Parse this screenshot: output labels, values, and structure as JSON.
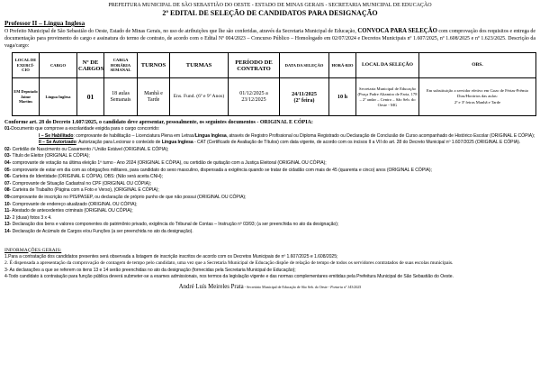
{
  "header": {
    "org": "PREFEITURA MUNICIPAL DE SÃO SEBASTIÃO DO OESTE - ESTADO DE MINAS GERAIS - SECRETARIA MUNICIPAL DE EDUCAÇÃO",
    "title": "2º EDITAL DE SELEÇÃO DE CANDIDATOS PARA DESIGNAÇÃO",
    "role": "Professor II – Língua Inglesa"
  },
  "intro": {
    "p1": "O Prefeito Municipal de São Sebastião do Oeste, Estado de Minas Gerais, no uso de atribuições que lhe são conferidas, através da Secretaria Municipal de Educação, ",
    "bold": "CONVOCA PARA SELEÇÃO",
    "p2": " com comprovação dos requisitos e entrega de documentação para provimento do cargo e assinatura do termo de contrato, de acordo com o Edital Nº 004/2023 – Concurso Público – Homologado em 02/07/2024 e Decretos Municipais nº 1.607/2025, nº 1.608/2025 e nº 1.623/2025. Descrição da vaga/cargo:"
  },
  "table": {
    "headers": [
      "LOCAL DE EXERCÍ-CIO",
      "CARGO",
      "Nº DE CARGOS",
      "CARGA HORÁRIA SEMANAL",
      "TURNOS",
      "TURMAS",
      "PERÍODO DE CONTRATO",
      "DATA DA SELEÇÃO",
      "HORÁ-RIO",
      "LOCAL DA SELEÇÃO",
      "OBS."
    ],
    "row": {
      "local": "EM Deputado Jaime Martins",
      "cargo": "Língua Inglesa",
      "num": "01",
      "carga": "18 aulas Semanais",
      "turnos": "Manhã e Tarde",
      "turmas": "Ens. Fund. (6º e 9º Anos)",
      "periodo": "01/12/2025 a 23/12/2025",
      "data": "24/11/2025",
      "data_dia": "(2ª feira)",
      "horario": "10 h",
      "local_selecao": "Secretaria Municipal de Educação (Praça Padre Altamiro de Faria, 178 – 2º andar – Centro – São Seb. do Oeste - MG",
      "obs1": "Em substituição a servidor efetivo em Gozo de Férias-Prêmio",
      "obs2": "Dias/Horários das aulas:",
      "obs3": "2ª e 3ª feiras Manhã e Tarde"
    }
  },
  "docs": {
    "conforme": "Conforme art. 28 do Decreto 1.607/2025, o candidato deve apresentar, pessoalmente, os seguintes documentos - ORIGINAL E CÓPIA:",
    "items": [
      {
        "n": "01-",
        "t": "Documento que comprove a escolaridade exigida para o cargo concorrido:"
      },
      {
        "n": "02-",
        "t": " Certidão de Nascimento ou Casamento / União Estável (ORIGINAL E CÓPIA);"
      },
      {
        "n": "03-",
        "t": " Título de Eleitor (ORIGINAL E CÓPIA);"
      },
      {
        "n": "04-",
        "t": " comprovante de votação na última eleição 1º turno - Ano 2024 (ORIGINAL E CÓPIA), ou certidão de quitação com a Justiça Eleitoral (ORIGINAL OU CÓPIA);"
      },
      {
        "n": "05-",
        "t": " comprovante de estar em dia com as obrigações militares, para candidato do sexo masculino, dispensada a exigência quando se tratar de cidadão com mais de 45 (quarenta e cinco) anos (ORIGINAL E CÓPIA);"
      },
      {
        "n": "06-",
        "t": " Carteira de Identidade (ORIGINAL E CÓPIA). OBS: (Não será aceita CNH);"
      },
      {
        "n": "07-",
        "t": " Comprovante de Situação Cadastral no CPF (ORIGINAL OU CÓPIA);"
      },
      {
        "n": "08-",
        "t": " Carteira de Trabalho (Página com a Foto e Verso), (ORIGINAL E CÓPIA);"
      },
      {
        "n": "09-",
        "t": "comprovante de inscrição no PIS/PASEP, ou declaração de próprio punho de que não possui (ORIGINAL OU CÓPIA);"
      },
      {
        "n": "10-",
        "t": " Comprovante de endereço atualizado (ORIGINAL OU CÓPIA);"
      },
      {
        "n": "11-",
        "t": " Atestado de antecedentes criminais (ORIGINAL OU CÓPIA);"
      },
      {
        "n": "12-",
        "t": " 2 (duas) fotos 3 x 4."
      },
      {
        "n": "13-",
        "t": " Declaração dos bens e valores componentes do patrimônio privado, exigência do Tribunal de Contas – Instrução nº 03/93; (a ser preenchida no ato da designação);"
      },
      {
        "n": "14-",
        "t": " Declaração de Acúmulo de Cargos e/ou Funções (a ser preenchida no ato da designação)."
      }
    ],
    "hab_label": "I – Se Habilitado",
    "hab_1": ": comprovante de habilitação – Licenciatura Plena em Letras/",
    "hab_bold": "Língua Inglesa",
    "hab_2": ", através de Registro Profissional ou Diploma Registrado ou Declaração de Conclusão de Curso acompanhado de Histórico Escolar (ORIGINAL E CÓPIA);",
    "aut_label": "II – Se Autorizado",
    "aut_1": ": Autorização para Lecionar o conteúdo de ",
    "aut_bold": "Língua Inglesa",
    "aut_2": " - CAT (Certificado de Avaliação de Títulos) com data vigente, de acordo com os incisos II a VII do art. 28 do Decreto Municipal nº 1.607/2025 (ORIGINAL E CÓPIA)."
  },
  "info": {
    "heading": "INFORMAÇÕES GERAIS:",
    "items": [
      "1.Para a contratação dos candidatos presentes será observada a listagem de inscrição inscritos de acordo com os Decretos Municipais de nº 1.607/2025 e 1.608/2025;",
      "2. É dispensada a apresentação da comprovação de contagem de tempo pelo candidato, uma vez que a Secretaria Municipal de Educação dispõe de relação de tempo de todos os servidores contratados de suas escolas municipais.",
      "3- As declarações a que se referem os itens 13 e 14 serão preenchidas no ato da designação (fornecidas pela Secretaria Municipal de Educação);",
      "4-Todo candidato à contratação para função pública deverá submeter-se a exames admissionais, nos termos da legislação vigente e das normas complementares emitidas pela Prefeitura Municipal de São Sebastião do Oeste."
    ]
  },
  "signature": {
    "name": "André Luís Meireles Prata",
    "role": " - Secretário Municipal de Educação de São Seb. do Oeste - ",
    "portaria": "Portaria nº 143/2025"
  }
}
